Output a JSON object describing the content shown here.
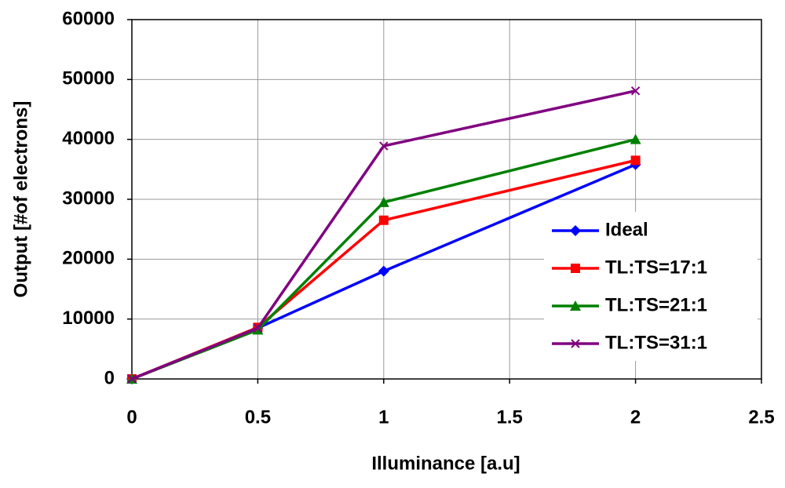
{
  "chart_data": {
    "type": "line",
    "x_label": "Illuminance [a.u]",
    "y_label": "Output [#of electrons]",
    "x": [
      0,
      0.5,
      1,
      2
    ],
    "series": [
      {
        "name": "Ideal",
        "color": "#0000ff",
        "marker": "diamond",
        "values": [
          0,
          8500,
          18000,
          35800
        ]
      },
      {
        "name": "TL:TS=17:1",
        "color": "#ff0000",
        "marker": "square",
        "values": [
          0,
          8600,
          26500,
          36500
        ]
      },
      {
        "name": "TL:TS=21:1",
        "color": "#008000",
        "marker": "triangle",
        "values": [
          0,
          8200,
          29500,
          40000
        ]
      },
      {
        "name": "TL:TS=31:1",
        "color": "#800080",
        "marker": "x",
        "values": [
          0,
          8500,
          38900,
          48100
        ]
      }
    ],
    "xlim": [
      0,
      2.5
    ],
    "xticks": [
      0,
      0.5,
      1,
      1.5,
      2,
      2.5
    ],
    "ylim": [
      0,
      60000
    ],
    "yticks": [
      0,
      10000,
      20000,
      30000,
      40000,
      50000,
      60000
    ],
    "grid": true,
    "legend": "lower right"
  }
}
